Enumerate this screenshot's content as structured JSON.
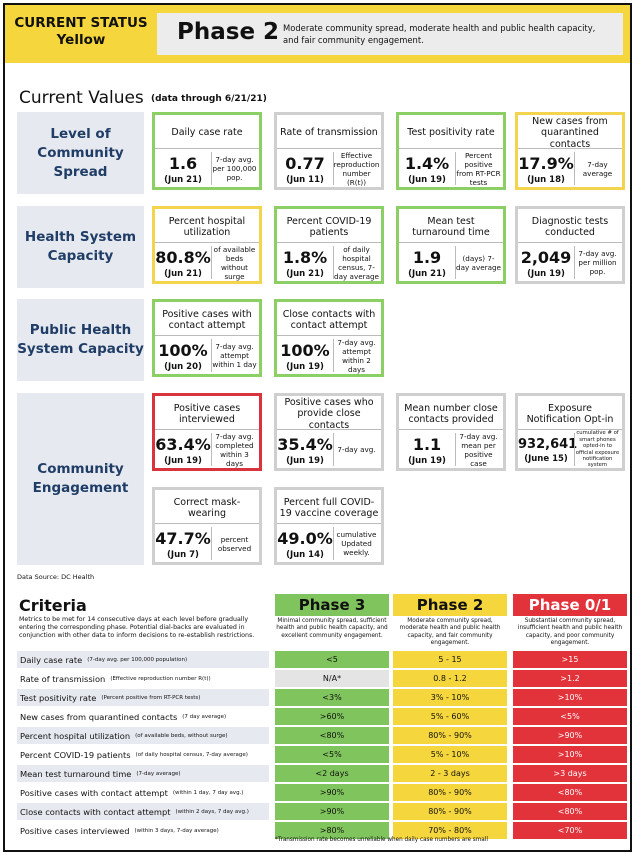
{
  "header": {
    "status_line1": "CURRENT STATUS",
    "status_line2": "Yellow",
    "phase": "Phase 2",
    "description": "Moderate community spread, moderate health and public health capacity, and fair community engagement."
  },
  "current_values": {
    "title": "Current Values",
    "subtitle": "(data through 6/21/21)"
  },
  "rows": [
    {
      "label": "Level of Community Spread"
    },
    {
      "label": "Health System Capacity"
    },
    {
      "label": "Public Health System Capacity"
    },
    {
      "label": "Community Engagement"
    }
  ],
  "cards": [
    {
      "title": "Daily case rate",
      "value": "1.6",
      "date": "(Jun 21)",
      "desc": "7-day avg. per 100,000 pop.",
      "status": "green"
    },
    {
      "title": "Rate of transmission",
      "value": "0.77",
      "date": "(Jun 11)",
      "desc": "Effective reproduction number (R(t))",
      "status": "gray"
    },
    {
      "title": "Test positivity rate",
      "value": "1.4%",
      "date": "(Jun 19)",
      "desc": "Percent positive from RT-PCR tests",
      "status": "green"
    },
    {
      "title": "New cases from quarantined contacts",
      "value": "17.9%",
      "date": "(Jun 18)",
      "desc": "7-day average",
      "status": "yellow"
    },
    {
      "title": "Percent hospital utilization",
      "value": "80.8%",
      "date": "(Jun 21)",
      "desc": "of available beds without surge",
      "status": "yellow"
    },
    {
      "title": "Percent COVID-19 patients",
      "value": "1.8%",
      "date": "(Jun 21)",
      "desc": "of daily hospital census, 7-day average",
      "status": "green"
    },
    {
      "title": "Mean test turnaround time",
      "value": "1.9",
      "date": "(Jun 21)",
      "desc": "(days) 7-day average",
      "status": "green"
    },
    {
      "title": "Diagnostic tests conducted",
      "value": "2,049",
      "date": "(Jun 19)",
      "desc": "7-day avg. per million pop.",
      "status": "gray"
    },
    {
      "title": "Positive cases with contact attempt",
      "value": "100%",
      "date": "(Jun 20)",
      "desc": "7-day avg. attempt within 1 day",
      "status": "green"
    },
    {
      "title": "Close contacts with contact attempt",
      "value": "100%",
      "date": "(Jun 19)",
      "desc": "7-day avg. attempt within 2 days",
      "status": "green"
    },
    {
      "title": "Positive cases interviewed",
      "value": "63.4%",
      "date": "(Jun 19)",
      "desc": "7-day avg. completed within 3 days",
      "status": "red"
    },
    {
      "title": "Positive cases who provide close contacts",
      "value": "35.4%",
      "date": "(Jun 19)",
      "desc": "7-day avg.",
      "status": "gray"
    },
    {
      "title": "Mean number close contacts provided",
      "value": "1.1",
      "date": "(Jun 19)",
      "desc": "7-day avg. mean per positive case",
      "status": "gray"
    },
    {
      "title": "Exposure Notification Opt-in",
      "value": "932,641",
      "date": "(June 15)",
      "desc": "cumulative # of smart phones opted-in to official exposure notification system",
      "status": "gray"
    },
    {
      "title": "Correct mask-wearing",
      "value": "47.7%",
      "date": "(Jun 7)",
      "desc": "percent observed",
      "status": "gray"
    },
    {
      "title": "Percent full COVID-19 vaccine coverage",
      "value": "49.0%",
      "date": "(Jun 14)",
      "desc": "cumulative Updated weekly.",
      "status": "gray"
    }
  ],
  "source": "Data Source: DC Health",
  "criteria": {
    "title": "Criteria",
    "intro": "Metrics to be met for 14 consecutive days at each level before gradually entering the corresponding phase. Potential dial-backs are evaluated in conjunction with other data to inform decisions to re-establish restrictions.",
    "phases": [
      {
        "name": "Phase 3",
        "desc": "Minimal community spread, sufficient health and public health capacity, and excellent community engagement.",
        "color": "#7fc45c"
      },
      {
        "name": "Phase 2",
        "desc": "Moderate community spread, moderate health and public health capacity, and fair community engagement.",
        "color": "#f5d63d"
      },
      {
        "name": "Phase 0/1",
        "desc": "Substantial community spread, insufficient health and public health capacity, and poor community engagement.",
        "color": "#e2323a"
      }
    ],
    "rows": [
      {
        "label": "Daily case rate",
        "note": "(7-day avg. per 100,000 population)",
        "p3": "<5",
        "p2": "5 - 15",
        "p1": ">15"
      },
      {
        "label": "Rate of transmission",
        "note": "(Effective reproduction number R(t))",
        "p3": "N/A*",
        "p2": "0.8 - 1.2",
        "p1": ">1.2"
      },
      {
        "label": "Test positivity rate",
        "note": "(Percent positive from RT-PCR tests)",
        "p3": "<3%",
        "p2": "3% - 10%",
        "p1": ">10%"
      },
      {
        "label": "New cases from quarantined contacts",
        "note": "(7 day average)",
        "p3": ">60%",
        "p2": "5% - 60%",
        "p1": "<5%"
      },
      {
        "label": "Percent hospital utilization",
        "note": "(of available beds, without surge)",
        "p3": "<80%",
        "p2": "80% - 90%",
        "p1": ">90%"
      },
      {
        "label": "Percent COVID-19 patients",
        "note": "(of daily hospital census, 7-day average)",
        "p3": "<5%",
        "p2": "5% - 10%",
        "p1": ">10%"
      },
      {
        "label": "Mean test turnaround time",
        "note": "(7-day average)",
        "p3": "<2 days",
        "p2": "2 - 3 days",
        "p1": ">3 days"
      },
      {
        "label": "Positive cases with contact attempt",
        "note": "(within 1 day, 7 day avg.)",
        "p3": ">90%",
        "p2": "80% - 90%",
        "p1": "<80%"
      },
      {
        "label": "Close contacts with contact attempt",
        "note": "(within 2 days, 7 day avg.)",
        "p3": ">90%",
        "p2": "80% - 90%",
        "p1": "<80%"
      },
      {
        "label": "Positive cases interviewed",
        "note": "(within 3 days, 7-day average)",
        "p3": ">80%",
        "p2": "70% - 80%",
        "p1": "<70%"
      }
    ],
    "footnote": "*Transmission rate becomes unreliable when daily case numbers are small"
  }
}
